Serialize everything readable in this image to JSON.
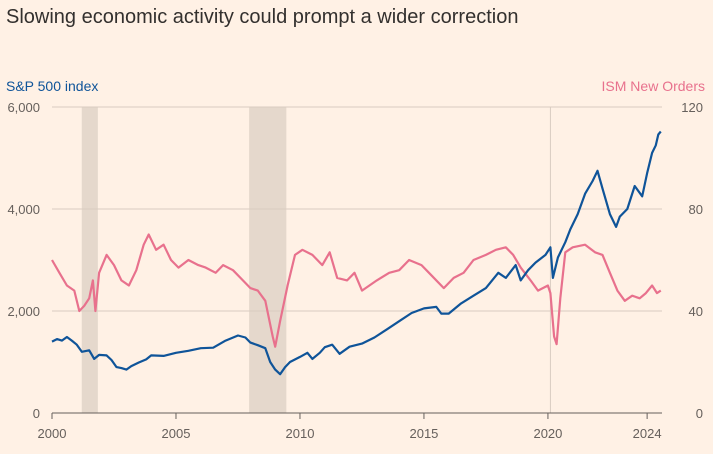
{
  "chart_data": {
    "type": "line",
    "title": "Slowing economic activity could prompt a wider correction",
    "left_axis_label": "S&P 500 index",
    "right_axis_label": "ISM New Orders",
    "left_axis": {
      "min": 0,
      "max": 6000,
      "ticks": [
        0,
        2000,
        4000,
        6000
      ],
      "tick_labels": [
        "0",
        "2,000",
        "4,000",
        "6,000"
      ]
    },
    "right_axis": {
      "min": 0,
      "max": 120,
      "ticks": [
        0,
        40,
        80,
        120
      ],
      "tick_labels": [
        "0",
        "40",
        "80",
        "120"
      ]
    },
    "x_axis": {
      "min": 2000,
      "max": 2024.6,
      "ticks": [
        2000,
        2005,
        2010,
        2015,
        2020,
        2024
      ],
      "tick_labels": [
        "2000",
        "2005",
        "2010",
        "2015",
        "2020",
        "2024"
      ]
    },
    "grid": true,
    "recessions": [
      {
        "start": 2001.2,
        "end": 2001.85
      },
      {
        "start": 2007.95,
        "end": 2009.45
      }
    ],
    "marker_line_x": 2020.1,
    "colors": {
      "sp500": "#0F5499",
      "ism": "#E8718D",
      "recession": "#E5D8CC",
      "grid": "#D9CCC1",
      "axis": "#66605C"
    },
    "series": [
      {
        "name": "S&P 500 index",
        "axis": "left",
        "points": [
          [
            2000.0,
            1400
          ],
          [
            2000.2,
            1450
          ],
          [
            2000.4,
            1420
          ],
          [
            2000.6,
            1490
          ],
          [
            2000.8,
            1420
          ],
          [
            2001.0,
            1340
          ],
          [
            2001.2,
            1200
          ],
          [
            2001.5,
            1230
          ],
          [
            2001.7,
            1060
          ],
          [
            2001.9,
            1140
          ],
          [
            2002.2,
            1130
          ],
          [
            2002.4,
            1040
          ],
          [
            2002.6,
            900
          ],
          [
            2002.8,
            880
          ],
          [
            2003.0,
            850
          ],
          [
            2003.2,
            920
          ],
          [
            2003.5,
            990
          ],
          [
            2003.8,
            1050
          ],
          [
            2004.0,
            1130
          ],
          [
            2004.5,
            1120
          ],
          [
            2005.0,
            1180
          ],
          [
            2005.5,
            1220
          ],
          [
            2006.0,
            1270
          ],
          [
            2006.5,
            1280
          ],
          [
            2007.0,
            1420
          ],
          [
            2007.5,
            1520
          ],
          [
            2007.8,
            1480
          ],
          [
            2008.0,
            1380
          ],
          [
            2008.3,
            1330
          ],
          [
            2008.6,
            1270
          ],
          [
            2008.8,
            1000
          ],
          [
            2009.0,
            850
          ],
          [
            2009.2,
            760
          ],
          [
            2009.4,
            900
          ],
          [
            2009.6,
            1000
          ],
          [
            2010.0,
            1100
          ],
          [
            2010.3,
            1180
          ],
          [
            2010.5,
            1060
          ],
          [
            2010.8,
            1180
          ],
          [
            2011.0,
            1290
          ],
          [
            2011.3,
            1340
          ],
          [
            2011.6,
            1160
          ],
          [
            2012.0,
            1300
          ],
          [
            2012.5,
            1360
          ],
          [
            2013.0,
            1480
          ],
          [
            2013.5,
            1640
          ],
          [
            2014.0,
            1800
          ],
          [
            2014.5,
            1960
          ],
          [
            2015.0,
            2050
          ],
          [
            2015.5,
            2080
          ],
          [
            2015.7,
            1950
          ],
          [
            2016.0,
            1950
          ],
          [
            2016.5,
            2150
          ],
          [
            2017.0,
            2300
          ],
          [
            2017.5,
            2450
          ],
          [
            2018.0,
            2750
          ],
          [
            2018.3,
            2650
          ],
          [
            2018.7,
            2900
          ],
          [
            2018.9,
            2600
          ],
          [
            2019.2,
            2800
          ],
          [
            2019.5,
            2950
          ],
          [
            2019.9,
            3100
          ],
          [
            2020.1,
            3250
          ],
          [
            2020.2,
            2650
          ],
          [
            2020.4,
            3050
          ],
          [
            2020.7,
            3350
          ],
          [
            2020.9,
            3600
          ],
          [
            2021.2,
            3900
          ],
          [
            2021.5,
            4300
          ],
          [
            2021.8,
            4550
          ],
          [
            2022.0,
            4750
          ],
          [
            2022.2,
            4400
          ],
          [
            2022.5,
            3900
          ],
          [
            2022.75,
            3650
          ],
          [
            2022.9,
            3850
          ],
          [
            2023.2,
            4000
          ],
          [
            2023.5,
            4450
          ],
          [
            2023.8,
            4250
          ],
          [
            2024.0,
            4700
          ],
          [
            2024.2,
            5100
          ],
          [
            2024.35,
            5250
          ],
          [
            2024.45,
            5460
          ],
          [
            2024.55,
            5520
          ]
        ]
      },
      {
        "name": "ISM New Orders",
        "axis": "right",
        "points": [
          [
            2000.0,
            60
          ],
          [
            2000.3,
            55
          ],
          [
            2000.6,
            50
          ],
          [
            2000.9,
            48
          ],
          [
            2001.1,
            40
          ],
          [
            2001.3,
            42
          ],
          [
            2001.5,
            45
          ],
          [
            2001.65,
            52
          ],
          [
            2001.75,
            40
          ],
          [
            2001.9,
            55
          ],
          [
            2002.2,
            62
          ],
          [
            2002.5,
            58
          ],
          [
            2002.8,
            52
          ],
          [
            2003.1,
            50
          ],
          [
            2003.4,
            56
          ],
          [
            2003.7,
            66
          ],
          [
            2003.9,
            70
          ],
          [
            2004.2,
            64
          ],
          [
            2004.5,
            66
          ],
          [
            2004.8,
            60
          ],
          [
            2005.1,
            57
          ],
          [
            2005.5,
            60
          ],
          [
            2005.9,
            58
          ],
          [
            2006.2,
            57
          ],
          [
            2006.6,
            55
          ],
          [
            2006.9,
            58
          ],
          [
            2007.3,
            56
          ],
          [
            2007.7,
            52
          ],
          [
            2008.0,
            49
          ],
          [
            2008.3,
            48
          ],
          [
            2008.6,
            44
          ],
          [
            2008.9,
            30
          ],
          [
            2009.0,
            26
          ],
          [
            2009.2,
            36
          ],
          [
            2009.5,
            50
          ],
          [
            2009.8,
            62
          ],
          [
            2010.1,
            64
          ],
          [
            2010.5,
            62
          ],
          [
            2010.9,
            58
          ],
          [
            2011.2,
            63
          ],
          [
            2011.5,
            53
          ],
          [
            2011.9,
            52
          ],
          [
            2012.2,
            55
          ],
          [
            2012.5,
            48
          ],
          [
            2012.8,
            50
          ],
          [
            2013.1,
            52
          ],
          [
            2013.6,
            55
          ],
          [
            2014.0,
            56
          ],
          [
            2014.4,
            60
          ],
          [
            2014.9,
            58
          ],
          [
            2015.3,
            54
          ],
          [
            2015.8,
            49
          ],
          [
            2016.2,
            53
          ],
          [
            2016.6,
            55
          ],
          [
            2017.0,
            60
          ],
          [
            2017.5,
            62
          ],
          [
            2017.9,
            64
          ],
          [
            2018.3,
            65
          ],
          [
            2018.6,
            62
          ],
          [
            2018.9,
            57
          ],
          [
            2019.3,
            52
          ],
          [
            2019.6,
            48
          ],
          [
            2020.0,
            50
          ],
          [
            2020.1,
            47
          ],
          [
            2020.25,
            30
          ],
          [
            2020.35,
            27
          ],
          [
            2020.5,
            45
          ],
          [
            2020.7,
            63
          ],
          [
            2021.0,
            65
          ],
          [
            2021.5,
            66
          ],
          [
            2021.9,
            63
          ],
          [
            2022.2,
            62
          ],
          [
            2022.5,
            55
          ],
          [
            2022.8,
            48
          ],
          [
            2023.1,
            44
          ],
          [
            2023.4,
            46
          ],
          [
            2023.7,
            45
          ],
          [
            2023.95,
            47
          ],
          [
            2024.2,
            50
          ],
          [
            2024.4,
            47
          ],
          [
            2024.55,
            48
          ]
        ]
      }
    ]
  }
}
